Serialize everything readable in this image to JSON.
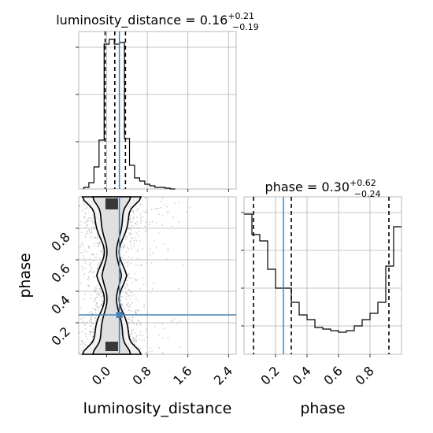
{
  "chart_data": {
    "type": "corner",
    "parameters": [
      "luminosity_distance",
      "phase"
    ],
    "truth": {
      "luminosity_distance": 0.25,
      "phase": 0.25
    },
    "truth_color": "#4682b4",
    "grid": true,
    "panels": [
      {
        "id": "hist-luminosity_distance",
        "type": "histogram",
        "title": {
          "prefix": "luminosity_distance = ",
          "value": "0.16",
          "plus": "+0.21",
          "minus": "−0.19"
        },
        "xlim": [
          -0.55,
          2.55
        ],
        "bin_edges": [
          -0.45,
          -0.35,
          -0.25,
          -0.15,
          -0.05,
          0.05,
          0.15,
          0.25,
          0.35,
          0.45,
          0.55,
          0.65,
          0.75,
          0.85,
          0.95,
          1.05,
          1.15,
          1.25,
          1.35
        ],
        "counts": [
          0.01,
          0.04,
          0.14,
          0.31,
          0.92,
          0.95,
          0.92,
          0.93,
          0.32,
          0.15,
          0.07,
          0.05,
          0.03,
          0.02,
          0.01,
          0.01,
          0.005,
          0.0
        ],
        "quantiles": [
          -0.03,
          0.16,
          0.37
        ],
        "truth": 0.25,
        "yticks": [
          0.3,
          0.6,
          0.9
        ]
      },
      {
        "id": "hist-phase",
        "type": "histogram",
        "title": {
          "prefix": "phase = ",
          "value": "0.30",
          "plus": "+0.62",
          "minus": "−0.24"
        },
        "xlim": [
          0.0,
          1.0
        ],
        "bin_edges": [
          0.0,
          0.05,
          0.1,
          0.15,
          0.2,
          0.25,
          0.3,
          0.35,
          0.4,
          0.45,
          0.5,
          0.55,
          0.6,
          0.65,
          0.7,
          0.75,
          0.8,
          0.85,
          0.9,
          0.95,
          1.0
        ],
        "counts": [
          0.89,
          0.76,
          0.72,
          0.54,
          0.42,
          0.42,
          0.33,
          0.25,
          0.22,
          0.17,
          0.16,
          0.15,
          0.14,
          0.15,
          0.18,
          0.22,
          0.26,
          0.33,
          0.56,
          0.81
        ],
        "quantiles": [
          0.06,
          0.3,
          0.92
        ],
        "truth": 0.25,
        "yticks": [
          0.18,
          0.42,
          0.66,
          0.9
        ]
      }
    ],
    "joint": {
      "id": "joint-luminosity_distance-phase",
      "type": "2d-density",
      "xlim": [
        -0.55,
        2.55
      ],
      "ylim": [
        0.0,
        1.0
      ],
      "point_cloud": {
        "x_center": 0.1,
        "x_spread": 0.35,
        "count": 1800
      },
      "truth": [
        0.25,
        0.25
      ]
    },
    "axes": {
      "luminosity_distance": {
        "label": "luminosity_distance",
        "ticks": [
          0.0,
          0.8,
          1.6,
          2.4
        ],
        "tick_labels": [
          "0.0",
          "0.8",
          "1.6",
          "2.4"
        ]
      },
      "phase_x": {
        "label": "phase",
        "ticks": [
          0.2,
          0.4,
          0.6,
          0.8
        ],
        "tick_labels": [
          "0.2",
          "0.4",
          "0.6",
          "0.8"
        ]
      },
      "phase_y": {
        "label": "phase",
        "ticks": [
          0.2,
          0.4,
          0.6,
          0.8
        ],
        "tick_labels": [
          "0.2",
          "0.4",
          "0.6",
          "0.8"
        ]
      }
    }
  }
}
